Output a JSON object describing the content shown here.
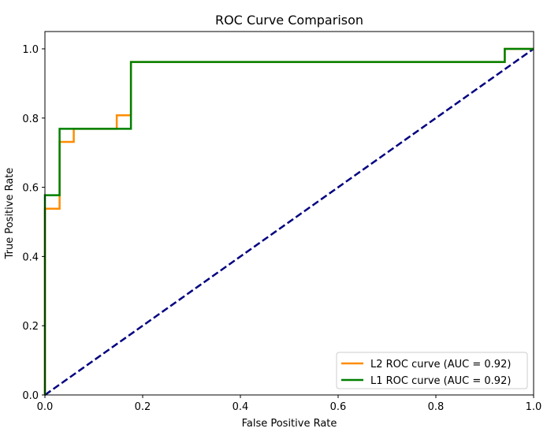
{
  "chart_data": {
    "type": "line",
    "title": "ROC Curve Comparison",
    "xlabel": "False Positive Rate",
    "ylabel": "True Positive Rate",
    "xlim": [
      0.0,
      1.0
    ],
    "ylim": [
      0.0,
      1.05
    ],
    "xticks": [
      0.0,
      0.2,
      0.4,
      0.6,
      0.8,
      1.0
    ],
    "xtick_labels": [
      "0.0",
      "0.2",
      "0.4",
      "0.6",
      "0.8",
      "1.0"
    ],
    "yticks": [
      0.0,
      0.2,
      0.4,
      0.6,
      0.8,
      1.0
    ],
    "ytick_labels": [
      "0.0",
      "0.2",
      "0.4",
      "0.6",
      "0.8",
      "1.0"
    ],
    "grid": false,
    "legend_position": "lower-right",
    "series": [
      {
        "name": "L2 ROC curve (AUC = 0.92)",
        "color": "#ff8c00",
        "x": [
          0.0,
          0.0,
          0.0,
          0.03,
          0.03,
          0.059,
          0.059,
          0.147,
          0.147,
          0.176,
          0.176,
          0.941,
          0.941,
          1.0
        ],
        "y": [
          0.0,
          0.019,
          0.538,
          0.538,
          0.731,
          0.731,
          0.769,
          0.769,
          0.808,
          0.808,
          0.962,
          0.962,
          1.0,
          1.0
        ]
      },
      {
        "name": "L1 ROC curve (AUC = 0.92)",
        "color": "#008000",
        "x": [
          0.0,
          0.0,
          0.0,
          0.03,
          0.03,
          0.176,
          0.176,
          0.941,
          0.941,
          1.0
        ],
        "y": [
          0.0,
          0.019,
          0.577,
          0.577,
          0.769,
          0.769,
          0.962,
          0.962,
          1.0,
          1.0
        ]
      }
    ],
    "reference_line": {
      "color": "#000080",
      "style": "dashed",
      "x": [
        0.0,
        1.0
      ],
      "y": [
        0.0,
        1.0
      ]
    }
  }
}
